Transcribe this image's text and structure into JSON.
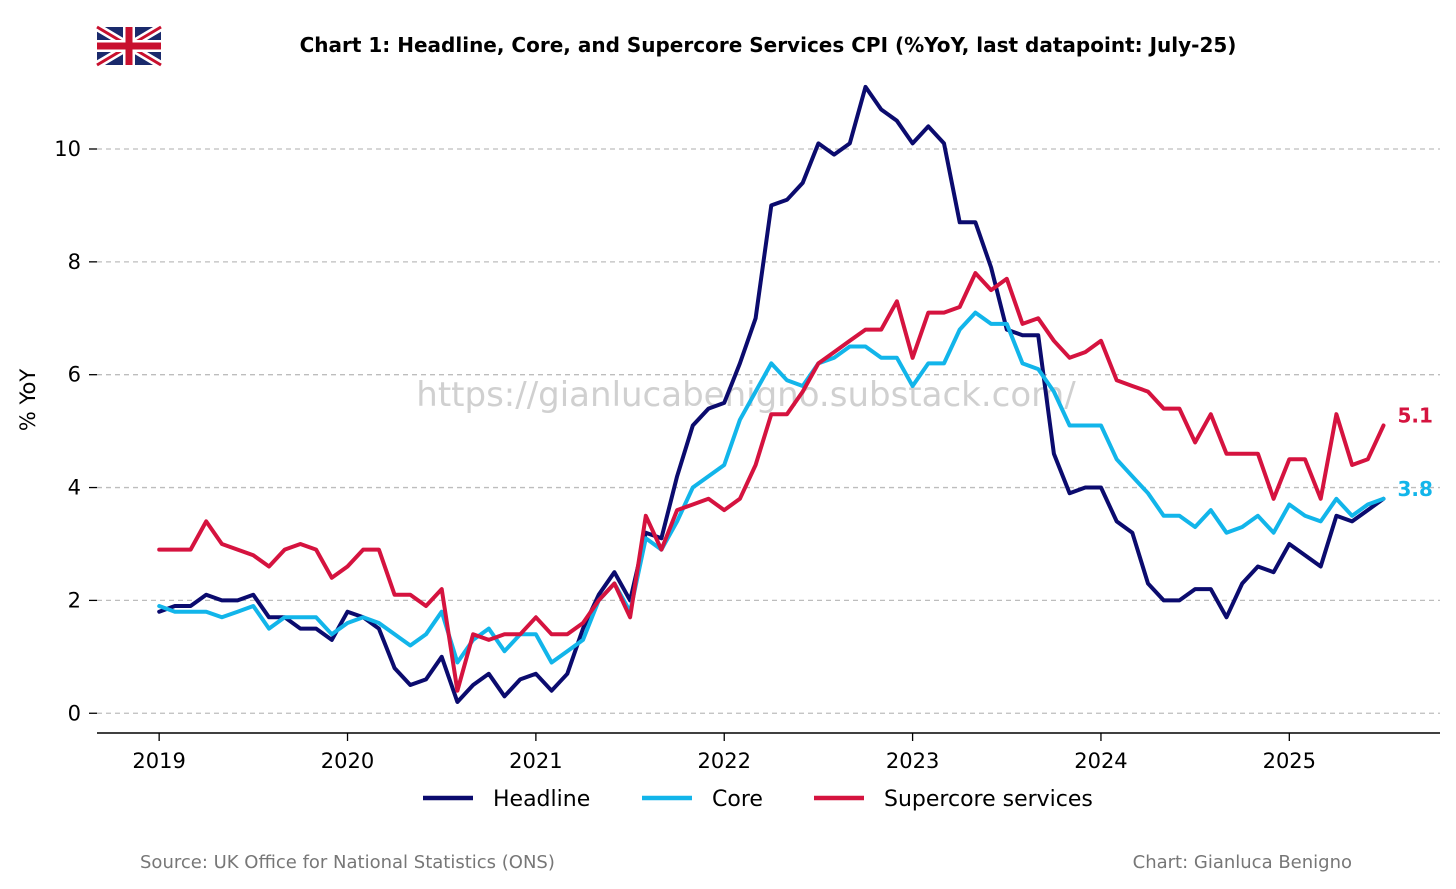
{
  "chart_data": {
    "type": "line",
    "title": "Chart 1: Headline, Core, and Supercore Services CPI (%YoY, last datapoint: July-25)",
    "ylabel": "% YoY",
    "xlabel": "",
    "ylim": [
      -0.35,
      11.4
    ],
    "xlim": [
      2018.67,
      2025.8
    ],
    "yticks": [
      0,
      2,
      4,
      6,
      8,
      10
    ],
    "yticklabels": [
      "0",
      "2",
      "4",
      "6",
      "8",
      "10"
    ],
    "xticks": [
      2019,
      2020,
      2021,
      2022,
      2023,
      2024,
      2025
    ],
    "xticklabels": [
      "2019",
      "2020",
      "2021",
      "2022",
      "2023",
      "2024",
      "2025"
    ],
    "grid": "horizontal dashed",
    "legend": "bottom-center",
    "start": "2019-01",
    "frequency": "monthly",
    "series": [
      {
        "name": "Headline",
        "color": "#0b0b6e",
        "values": [
          1.8,
          1.9,
          1.9,
          2.1,
          2.0,
          2.0,
          2.1,
          1.7,
          1.7,
          1.5,
          1.5,
          1.3,
          1.8,
          1.7,
          1.5,
          0.8,
          0.5,
          0.6,
          1.0,
          0.2,
          0.5,
          0.7,
          0.3,
          0.6,
          0.7,
          0.4,
          0.7,
          1.5,
          2.1,
          2.5,
          2.0,
          3.2,
          3.1,
          4.2,
          5.1,
          5.4,
          5.5,
          6.2,
          7.0,
          9.0,
          9.1,
          9.4,
          10.1,
          9.9,
          10.1,
          11.1,
          10.7,
          10.5,
          10.1,
          10.4,
          10.1,
          8.7,
          8.7,
          7.9,
          6.8,
          6.7,
          6.7,
          4.6,
          3.9,
          4.0,
          4.0,
          3.4,
          3.2,
          2.3,
          2.0,
          2.0,
          2.2,
          2.2,
          1.7,
          2.3,
          2.6,
          2.5,
          3.0,
          2.8,
          2.6,
          3.5,
          3.4,
          3.6,
          3.8
        ],
        "end_label": "",
        "lw": 4
      },
      {
        "name": "Core",
        "color": "#12b5ea",
        "values": [
          1.9,
          1.8,
          1.8,
          1.8,
          1.7,
          1.8,
          1.9,
          1.5,
          1.7,
          1.7,
          1.7,
          1.4,
          1.6,
          1.7,
          1.6,
          1.4,
          1.2,
          1.4,
          1.8,
          0.9,
          1.3,
          1.5,
          1.1,
          1.4,
          1.4,
          0.9,
          1.1,
          1.3,
          2.0,
          2.3,
          1.8,
          3.1,
          2.9,
          3.4,
          4.0,
          4.2,
          4.4,
          5.2,
          5.7,
          6.2,
          5.9,
          5.8,
          6.2,
          6.3,
          6.5,
          6.5,
          6.3,
          6.3,
          5.8,
          6.2,
          6.2,
          6.8,
          7.1,
          6.9,
          6.9,
          6.2,
          6.1,
          5.7,
          5.1,
          5.1,
          5.1,
          4.5,
          4.2,
          3.9,
          3.5,
          3.5,
          3.3,
          3.6,
          3.2,
          3.3,
          3.5,
          3.2,
          3.7,
          3.5,
          3.4,
          3.8,
          3.5,
          3.7,
          3.8
        ],
        "end_label": "3.8",
        "lw": 4
      },
      {
        "name": "Supercore services",
        "color": "#d5133f",
        "values": [
          2.9,
          2.9,
          2.9,
          3.4,
          3.0,
          2.9,
          2.8,
          2.6,
          2.9,
          3.0,
          2.9,
          2.4,
          2.6,
          2.9,
          2.9,
          2.1,
          2.1,
          1.9,
          2.2,
          0.4,
          1.4,
          1.3,
          1.4,
          1.4,
          1.7,
          1.4,
          1.4,
          1.6,
          2.0,
          2.3,
          1.7,
          3.5,
          2.9,
          3.6,
          3.7,
          3.8,
          3.6,
          3.8,
          4.4,
          5.3,
          5.3,
          5.7,
          6.2,
          6.4,
          6.6,
          6.8,
          6.8,
          7.3,
          6.3,
          7.1,
          7.1,
          7.2,
          7.8,
          7.5,
          7.7,
          6.9,
          7.0,
          6.6,
          6.3,
          6.4,
          6.6,
          5.9,
          5.8,
          5.7,
          5.4,
          5.4,
          4.8,
          5.3,
          4.6,
          4.6,
          4.6,
          3.8,
          4.5,
          4.5,
          3.8,
          5.3,
          4.4,
          4.5,
          5.1
        ],
        "end_label": "5.1",
        "lw": 4
      }
    ]
  },
  "watermark": "https://gianlucabenigno.substack.com/",
  "flag_icon": "uk-flag-icon",
  "footer": {
    "source": "Source: UK Office for National Statistics (ONS)",
    "credit": "Chart: Gianluca Benigno"
  }
}
